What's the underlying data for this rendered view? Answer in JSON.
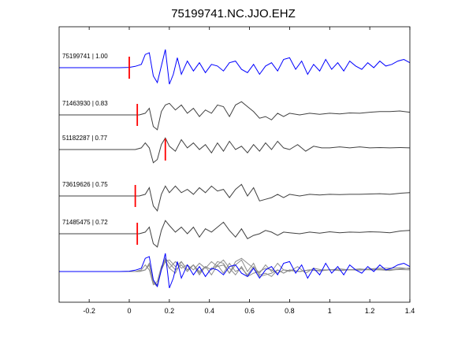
{
  "chart_data": {
    "type": "line",
    "title": "75199741.NC.JJO.EHZ",
    "xlabel": "",
    "ylabel": "",
    "xlim": [
      -0.35,
      1.4
    ],
    "x_ticks": [
      -0.2,
      0,
      0.2,
      0.4,
      0.6,
      0.8,
      1,
      1.2,
      1.4
    ],
    "x_tick_labels": [
      "-0.2",
      "0",
      "0.2",
      "0.4",
      "0.6",
      "0.8",
      "1",
      "1.2",
      "1.4"
    ],
    "grid": false,
    "colors": {
      "primary": "#0000ff",
      "secondary": "#404040",
      "overlay_gray": "#8c8c8c",
      "pick": "#ff0000"
    },
    "series": [
      {
        "name": "75199741 | 1.00",
        "label_id": "75199741",
        "correlation": "1.00",
        "color": "#0000ff",
        "pick_time": 0.0,
        "x": [
          -0.35,
          -0.05,
          0.0,
          0.03,
          0.06,
          0.08,
          0.1,
          0.12,
          0.14,
          0.16,
          0.18,
          0.2,
          0.22,
          0.24,
          0.26,
          0.29,
          0.32,
          0.35,
          0.38,
          0.41,
          0.44,
          0.47,
          0.5,
          0.53,
          0.56,
          0.59,
          0.62,
          0.65,
          0.68,
          0.71,
          0.74,
          0.77,
          0.8,
          0.83,
          0.86,
          0.89,
          0.92,
          0.95,
          0.98,
          1.01,
          1.04,
          1.07,
          1.1,
          1.13,
          1.16,
          1.19,
          1.22,
          1.25,
          1.28,
          1.31,
          1.34,
          1.37,
          1.4
        ],
        "y": [
          0,
          0,
          0.01,
          0.04,
          0.1,
          0.4,
          0.45,
          -0.25,
          -0.45,
          0.05,
          0.55,
          -0.5,
          -0.2,
          0.3,
          -0.2,
          0.2,
          -0.1,
          0.15,
          -0.15,
          0.1,
          0.05,
          -0.1,
          0.15,
          0.2,
          -0.05,
          -0.15,
          0.1,
          -0.2,
          0.05,
          0.15,
          -0.1,
          0.25,
          0.3,
          -0.05,
          0.2,
          -0.2,
          0.1,
          -0.1,
          0.25,
          -0.05,
          0.15,
          -0.1,
          0.2,
          0.05,
          -0.05,
          0.15,
          0.0,
          0.2,
          0.05,
          0.1,
          0.2,
          0.25,
          0.15
        ]
      },
      {
        "name": "71463930 | 0.83",
        "label_id": "71463930",
        "correlation": "0.83",
        "color": "#404040",
        "pick_time": 0.04,
        "x": [
          -0.35,
          0.05,
          0.08,
          0.1,
          0.12,
          0.14,
          0.16,
          0.18,
          0.2,
          0.23,
          0.26,
          0.29,
          0.32,
          0.35,
          0.38,
          0.41,
          0.44,
          0.47,
          0.5,
          0.53,
          0.56,
          0.59,
          0.62,
          0.65,
          0.68,
          0.71,
          0.74,
          0.77,
          0.8,
          0.85,
          0.9,
          0.95,
          1.0,
          1.05,
          1.1,
          1.15,
          1.2,
          1.25,
          1.3,
          1.35,
          1.4
        ],
        "y": [
          0,
          0,
          0.05,
          0.2,
          -0.35,
          -0.45,
          0.1,
          0.3,
          0.35,
          0.15,
          0.3,
          0.05,
          0.2,
          -0.05,
          0.15,
          0.05,
          0.3,
          0.25,
          -0.05,
          0.3,
          0.4,
          0.25,
          0.1,
          -0.1,
          -0.05,
          -0.15,
          0.05,
          -0.05,
          0.05,
          0.0,
          0.05,
          0.02,
          0.05,
          0.03,
          0.06,
          0.05,
          0.08,
          0.1,
          0.1,
          0.12,
          0.08
        ]
      },
      {
        "name": "51182287 | 0.77",
        "label_id": "51182287",
        "correlation": "0.77",
        "color": "#404040",
        "pick_time": 0.18,
        "x": [
          -0.35,
          0.03,
          0.06,
          0.08,
          0.1,
          0.12,
          0.14,
          0.16,
          0.18,
          0.2,
          0.23,
          0.26,
          0.29,
          0.32,
          0.35,
          0.38,
          0.41,
          0.44,
          0.47,
          0.5,
          0.53,
          0.56,
          0.59,
          0.62,
          0.65,
          0.68,
          0.71,
          0.74,
          0.77,
          0.8,
          0.84,
          0.88,
          0.92,
          0.96,
          1.0,
          1.05,
          1.1,
          1.15,
          1.2,
          1.25,
          1.3,
          1.35,
          1.4
        ],
        "y": [
          0,
          0,
          0.05,
          0.2,
          0.05,
          -0.4,
          -0.3,
          0.15,
          0.35,
          0.1,
          -0.05,
          0.3,
          0.05,
          0.2,
          0.0,
          0.15,
          -0.1,
          0.2,
          -0.05,
          0.25,
          0.0,
          0.1,
          -0.1,
          0.15,
          -0.05,
          0.2,
          0.0,
          0.25,
          0.05,
          0.0,
          0.15,
          -0.05,
          0.1,
          0.05,
          0.05,
          0.08,
          0.05,
          0.08,
          0.05,
          0.06,
          0.05,
          0.06,
          0.05
        ]
      },
      {
        "name": "73619626 | 0.75",
        "label_id": "73619626",
        "correlation": "0.75",
        "color": "#404040",
        "pick_time": 0.03,
        "x": [
          -0.35,
          0.05,
          0.08,
          0.1,
          0.12,
          0.14,
          0.16,
          0.18,
          0.2,
          0.23,
          0.26,
          0.29,
          0.32,
          0.35,
          0.38,
          0.41,
          0.44,
          0.47,
          0.5,
          0.53,
          0.56,
          0.59,
          0.62,
          0.65,
          0.68,
          0.71,
          0.74,
          0.77,
          0.8,
          0.85,
          0.9,
          0.95,
          1.0,
          1.05,
          1.1,
          1.15,
          1.2,
          1.25,
          1.3,
          1.35,
          1.4
        ],
        "y": [
          0,
          0,
          0.05,
          0.25,
          -0.3,
          -0.45,
          0.05,
          0.3,
          0.1,
          0.3,
          0.1,
          0.2,
          0.05,
          0.25,
          0.1,
          0.3,
          0.15,
          0.2,
          -0.05,
          0.2,
          0.35,
          0.0,
          0.25,
          -0.15,
          -0.1,
          -0.05,
          0.05,
          -0.05,
          0.05,
          0.0,
          0.05,
          0.03,
          0.05,
          0.04,
          0.05,
          0.05,
          0.06,
          0.07,
          0.05,
          0.08,
          0.1
        ]
      },
      {
        "name": "71485475 | 0.72",
        "label_id": "71485475",
        "correlation": "0.72",
        "color": "#404040",
        "pick_time": 0.04,
        "x": [
          -0.35,
          0.05,
          0.08,
          0.1,
          0.12,
          0.14,
          0.16,
          0.18,
          0.2,
          0.23,
          0.26,
          0.29,
          0.32,
          0.35,
          0.38,
          0.41,
          0.44,
          0.47,
          0.5,
          0.53,
          0.56,
          0.59,
          0.62,
          0.65,
          0.68,
          0.71,
          0.74,
          0.77,
          0.8,
          0.85,
          0.9,
          0.95,
          1.0,
          1.05,
          1.1,
          1.15,
          1.2,
          1.25,
          1.3,
          1.35,
          1.4
        ],
        "y": [
          0,
          0,
          0.05,
          0.2,
          -0.3,
          -0.4,
          0.1,
          0.4,
          0.25,
          0.05,
          0.2,
          0.0,
          0.2,
          -0.1,
          0.15,
          0.05,
          0.2,
          0.35,
          0.1,
          -0.1,
          0.15,
          -0.15,
          -0.05,
          0.0,
          0.1,
          0.05,
          -0.05,
          0.05,
          0.03,
          0.0,
          0.05,
          0.02,
          0.06,
          0.03,
          0.05,
          0.04,
          0.06,
          0.05,
          0.03,
          0.08,
          0.1
        ]
      }
    ],
    "stack_note": "Bottom row overlays all traces aligned on pick"
  }
}
